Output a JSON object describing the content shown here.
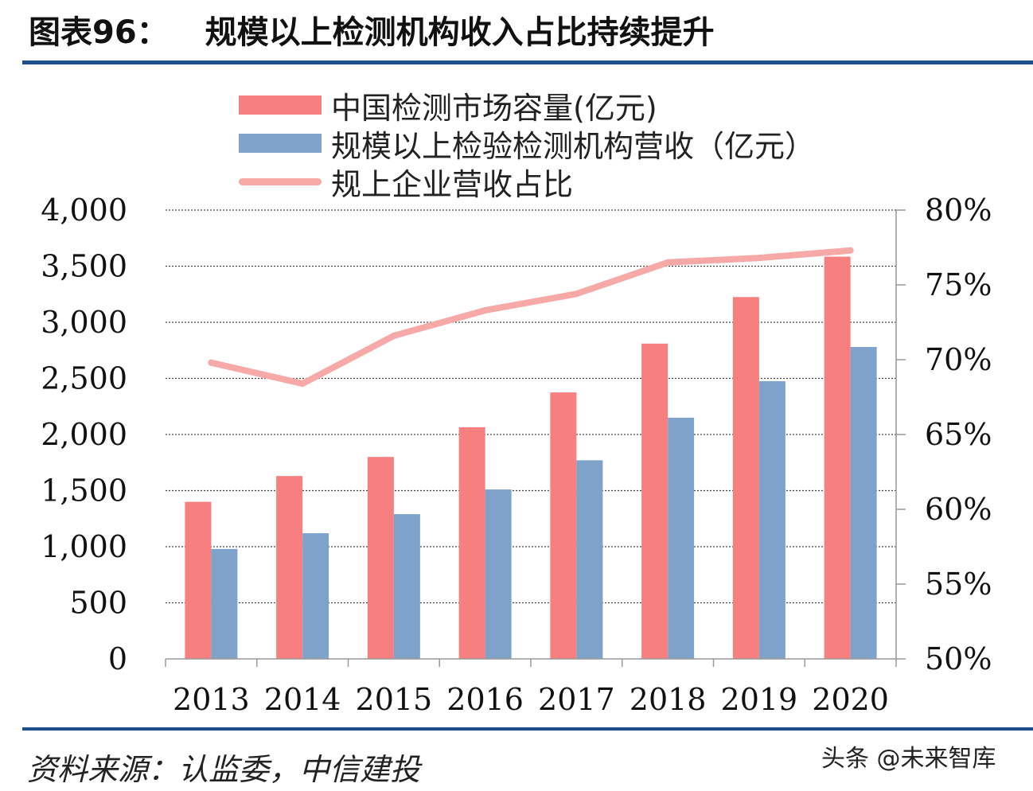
{
  "header": {
    "figure_label": "图表96：",
    "title": "规模以上检测机构收入占比持续提升"
  },
  "colors": {
    "rule": "#1f4e8c",
    "bar_market": "#f77f80",
    "bar_revenue": "#7ea2c9",
    "line_share": "#f6a9a6"
  },
  "chart_data": {
    "type": "bar",
    "categories": [
      "2013",
      "2014",
      "2015",
      "2016",
      "2017",
      "2018",
      "2019",
      "2020"
    ],
    "series": [
      {
        "name": "中国检测市场容量(亿元)",
        "type": "bar",
        "axis": "left",
        "values": [
          1400,
          1630,
          1800,
          2065,
          2375,
          2810,
          3225,
          3585
        ]
      },
      {
        "name": "规模以上检验检测机构营收（亿元）",
        "type": "bar",
        "axis": "left",
        "values": [
          980,
          1120,
          1290,
          1510,
          1770,
          2150,
          2475,
          2780
        ]
      },
      {
        "name": "规上企业营收占比",
        "type": "line",
        "axis": "right",
        "values": [
          69.8,
          68.4,
          71.6,
          73.3,
          74.4,
          76.5,
          76.8,
          77.3
        ]
      }
    ],
    "y_left": {
      "min": 0,
      "max": 4000,
      "ticks": [
        "0",
        "500",
        "1,000",
        "1,500",
        "2,000",
        "2,500",
        "3,000",
        "3,500",
        "4,000"
      ]
    },
    "y_right": {
      "min": 50,
      "max": 80,
      "ticks": [
        "50%",
        "55%",
        "60%",
        "65%",
        "70%",
        "75%",
        "80%"
      ]
    },
    "grid": "dotted horizontal",
    "legend": "top"
  },
  "footer": {
    "source": "资料来源：认监委，中信建投",
    "watermark": "头条 @未来智库"
  }
}
